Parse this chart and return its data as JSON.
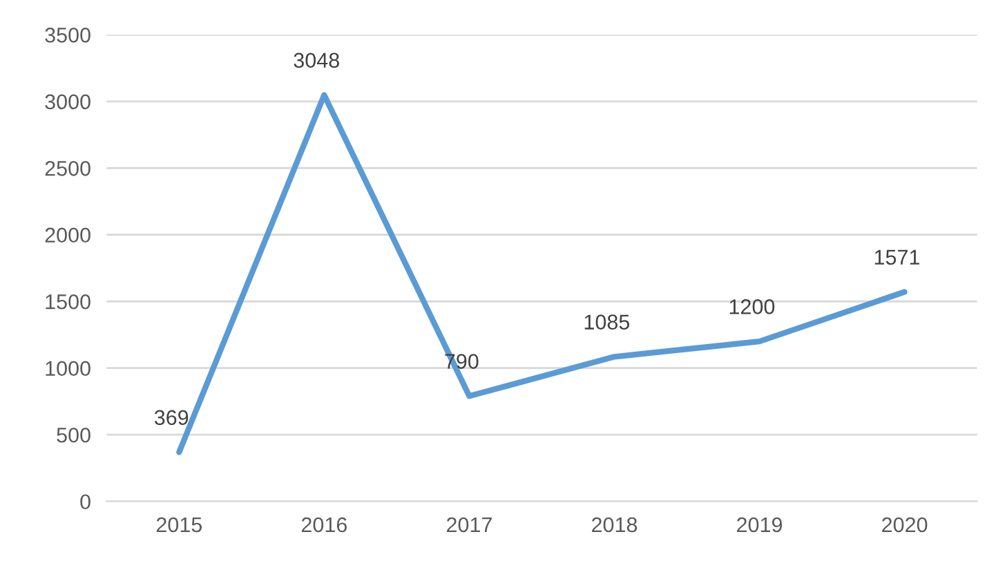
{
  "chart_data": {
    "type": "line",
    "categories": [
      "2015",
      "2016",
      "2017",
      "2018",
      "2019",
      "2020"
    ],
    "series": [
      {
        "color": "#5b9bd5",
        "values": [
          369,
          3048,
          790,
          1085,
          1200,
          1571
        ]
      }
    ],
    "ylim": [
      0,
      3500
    ],
    "yticks": [
      0,
      500,
      1000,
      1500,
      2000,
      2500,
      3000,
      3500
    ],
    "grid": "y",
    "data_labels": true,
    "legend": false,
    "marker": "none",
    "line_style": "solid"
  }
}
